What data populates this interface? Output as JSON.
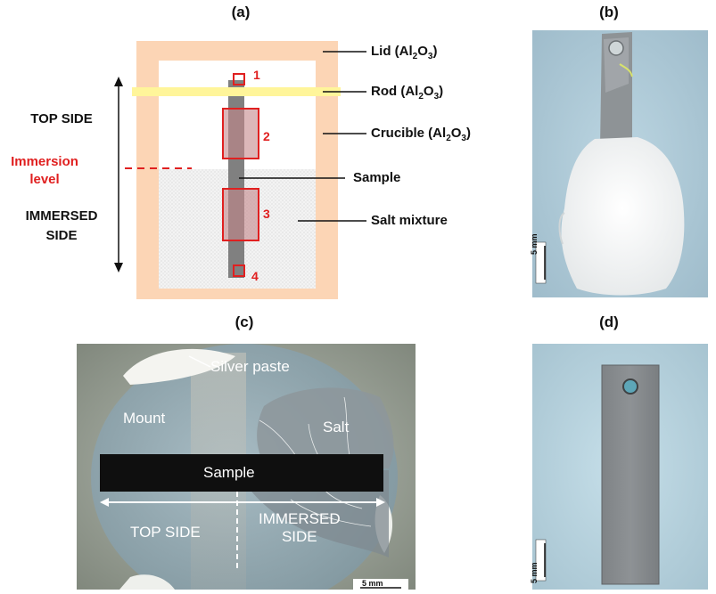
{
  "panels": {
    "a": "(a)",
    "b": "(b)",
    "c": "(c)",
    "d": "(d)"
  },
  "diagram": {
    "top_side": "TOP SIDE",
    "immersion_level": [
      "Immersion",
      "level"
    ],
    "immersed_side": [
      "IMMERSED",
      "SIDE"
    ],
    "callouts": {
      "lid": {
        "text": "Lid (Al",
        "sub1": "2",
        "mid": "O",
        "sub2": "3",
        "end": ")"
      },
      "rod": {
        "text": "Rod (Al",
        "sub1": "2",
        "mid": "O",
        "sub2": "3",
        "end": ")"
      },
      "crucible": {
        "text": "Crucible (Al",
        "sub1": "2",
        "mid": "O",
        "sub2": "3",
        "end": ")"
      },
      "sample": "Sample",
      "salt": "Salt mixture"
    },
    "numbers": [
      "1",
      "2",
      "3",
      "4"
    ]
  },
  "photo_b": {
    "scale": "5 mm"
  },
  "photo_c": {
    "silver_paste": "Silver paste",
    "mount": "Mount",
    "salt": "Salt",
    "sample": "Sample",
    "top_side": "TOP SIDE",
    "immersed_side": [
      "IMMERSED",
      "SIDE"
    ],
    "scale": "5 mm"
  },
  "photo_d": {
    "scale": "5 mm"
  },
  "colors": {
    "crucible": "#fcd5b5",
    "rod": "#fff59a",
    "sample": "#808080",
    "red": "#e02020"
  }
}
